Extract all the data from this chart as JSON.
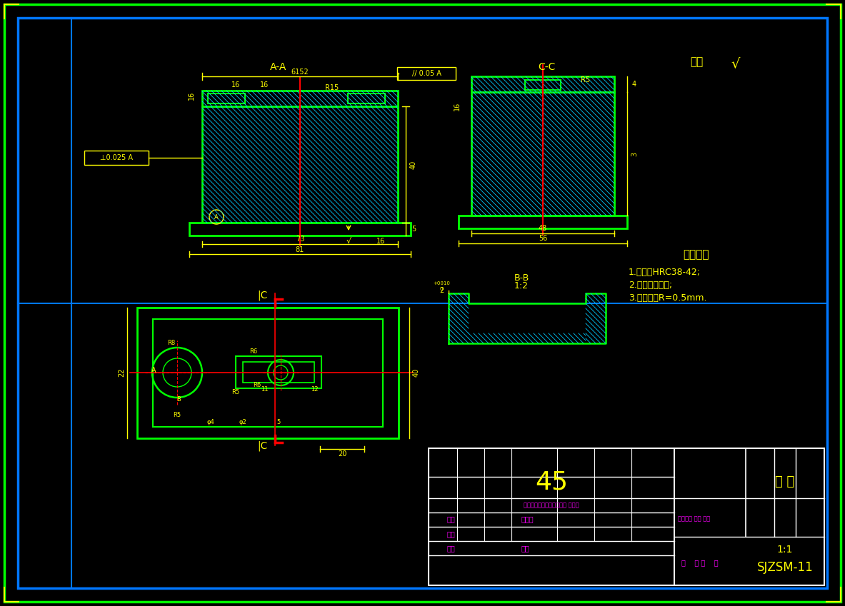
{
  "bg_color": "#000000",
  "green": "#00ff00",
  "blue": "#0077ff",
  "yellow": "#ffff00",
  "magenta": "#ff00ff",
  "red": "#ff0000",
  "white": "#ffffff",
  "cyan": "#00ccff",
  "tech_req_title": "技术要求",
  "tech_req_1": "1.热处理HRC38-42;",
  "tech_req_2": "2.锐角去毛倒角;",
  "tech_req_3": "3.未注圆角R=0.5mm.",
  "material": "45",
  "part_name": "型 腔",
  "drawing_num": "SJZSM-11",
  "scale": "1:1",
  "label_biaozhu": "标记处数分区更改文件签名 年月日",
  "label_sheji": "设计",
  "label_biaozhunhua": "标准化",
  "label_jieduan": "阶段标记 重量 比例",
  "label_shenhe": "审核",
  "label_pizhun": "批准",
  "label_gongyi": "工艺",
  "label_gong_zhang": "共    张 第    张",
  "label_qiyu": "其余"
}
